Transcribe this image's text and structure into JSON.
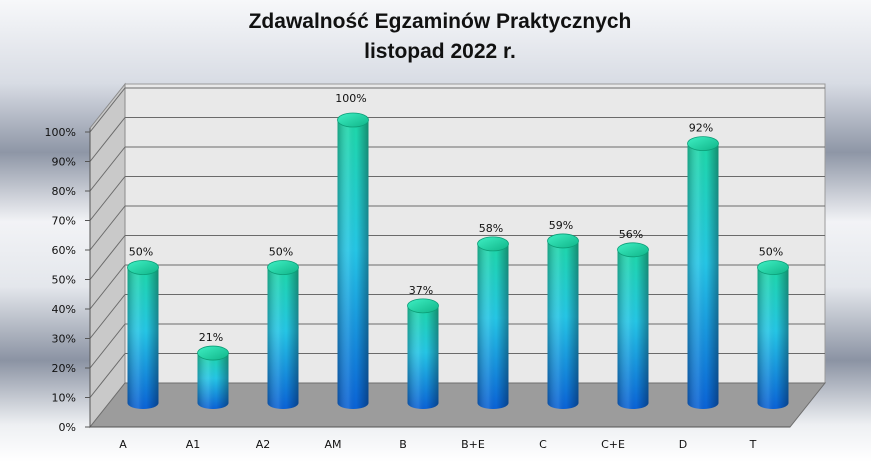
{
  "chart_data": {
    "type": "bar",
    "title": "Zdawalność Egzaminów Praktycznych",
    "subtitle": "listopad 2022 r.",
    "categories": [
      "A",
      "A1",
      "A2",
      "AM",
      "B",
      "B+E",
      "C",
      "C+E",
      "D",
      "T"
    ],
    "values": [
      50,
      21,
      50,
      100,
      37,
      58,
      59,
      56,
      92,
      50
    ],
    "data_labels": [
      "50%",
      "21%",
      "50%",
      "100%",
      "37%",
      "58%",
      "59%",
      "56%",
      "92%",
      "50%"
    ],
    "ylim": [
      0,
      100
    ],
    "ytick_labels": [
      "0%",
      "10%",
      "20%",
      "30%",
      "40%",
      "50%",
      "60%",
      "70%",
      "80%",
      "90%",
      "100%"
    ],
    "xlabel": "",
    "ylabel": "",
    "grid": true,
    "legend": "none",
    "style": "3d-cylinder",
    "colors": {
      "bar_top": "#1ed8a8",
      "bar_mid": "#25c6e6",
      "bar_bottom": "#0a62d6"
    }
  }
}
